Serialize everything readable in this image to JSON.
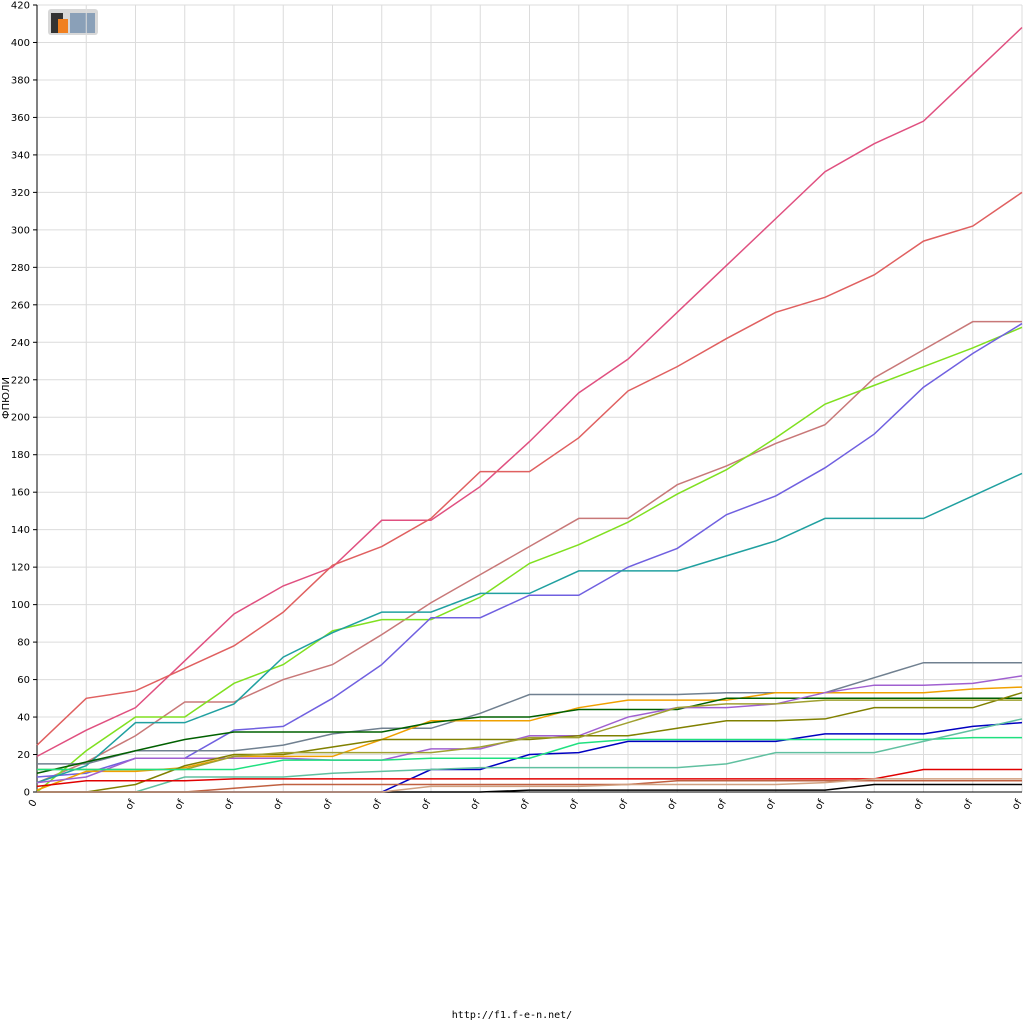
{
  "chart_data": {
    "type": "line",
    "y_label": "ФПЮЛИ",
    "footer": "http://f1.f-e-n.net/",
    "categories": [
      "0",
      null,
      "of",
      "of",
      "of",
      "of",
      "of",
      "of",
      "of",
      "of",
      "of",
      "of",
      "of",
      "of",
      "of",
      "of",
      "of",
      "of",
      "of",
      "of",
      "of"
    ],
    "ylim": [
      0,
      420
    ],
    "yticks": [
      0,
      20,
      40,
      60,
      80,
      100,
      120,
      140,
      160,
      180,
      200,
      220,
      240,
      260,
      280,
      300,
      320,
      340,
      360,
      380,
      400,
      420
    ],
    "grid": true,
    "series": [
      {
        "color": "#e05080",
        "values": [
          19,
          33,
          45,
          70,
          95,
          110,
          120,
          145,
          145,
          163,
          187,
          213,
          231,
          256,
          281,
          306,
          331,
          346,
          358,
          383,
          408
        ]
      },
      {
        "color": "#e06060",
        "values": [
          25,
          50,
          54,
          66,
          78,
          96,
          121,
          131,
          146,
          171,
          171,
          189,
          214,
          227,
          242,
          256,
          264,
          276,
          294,
          302,
          320
        ]
      },
      {
        "color": "#c87878",
        "values": [
          5,
          16,
          30,
          48,
          48,
          60,
          68,
          84,
          101,
          116,
          131,
          146,
          146,
          164,
          174,
          186,
          196,
          221,
          236,
          251,
          251
        ]
      },
      {
        "color": "#80e020",
        "values": [
          0,
          22,
          40,
          40,
          58,
          68,
          86,
          92,
          92,
          104,
          122,
          132,
          144,
          159,
          172,
          189,
          207,
          217,
          227,
          237,
          248
        ]
      },
      {
        "color": "#7060e0",
        "values": [
          8,
          10,
          18,
          18,
          33,
          35,
          50,
          68,
          93,
          93,
          105,
          105,
          120,
          130,
          148,
          158,
          173,
          191,
          216,
          234,
          250
        ]
      },
      {
        "color": "#20a0a0",
        "values": [
          5,
          14,
          37,
          37,
          47,
          72,
          85,
          96,
          96,
          106,
          106,
          118,
          118,
          118,
          126,
          134,
          146,
          146,
          146,
          158,
          170
        ]
      },
      {
        "color": "#708090",
        "values": [
          15,
          15,
          22,
          22,
          22,
          25,
          31,
          34,
          34,
          42,
          52,
          52,
          52,
          52,
          53,
          53,
          53,
          61,
          69,
          69,
          69
        ]
      },
      {
        "color": "#f0a000",
        "values": [
          1,
          11,
          11,
          13,
          19,
          19,
          19,
          28,
          38,
          38,
          38,
          45,
          49,
          49,
          49,
          53,
          53,
          53,
          53,
          55,
          56
        ]
      },
      {
        "color": "#006000",
        "values": [
          10,
          16,
          22,
          28,
          32,
          32,
          32,
          32,
          37,
          40,
          40,
          44,
          44,
          44,
          50,
          50,
          50,
          50,
          50,
          50,
          50
        ]
      },
      {
        "color": "#a060d0",
        "values": [
          5,
          8,
          18,
          18,
          18,
          18,
          17,
          17,
          23,
          23,
          30,
          30,
          40,
          45,
          45,
          47,
          53,
          57,
          57,
          58,
          62
        ]
      },
      {
        "color": "#808000",
        "values": [
          0,
          0,
          4,
          14,
          20,
          20,
          24,
          28,
          28,
          28,
          28,
          30,
          30,
          34,
          38,
          38,
          39,
          45,
          45,
          45,
          53
        ]
      },
      {
        "color": "#a0a030",
        "values": [
          12,
          12,
          12,
          12,
          19,
          21,
          21,
          21,
          21,
          24,
          29,
          29,
          37,
          45,
          47,
          47,
          49,
          49,
          49,
          49,
          49
        ]
      },
      {
        "color": "#0000c0",
        "values": [
          0,
          0,
          0,
          0,
          0,
          0,
          0,
          0,
          12,
          12,
          20,
          21,
          27,
          27,
          27,
          27,
          31,
          31,
          31,
          35,
          37
        ]
      },
      {
        "color": "#20e080",
        "values": [
          12,
          12,
          12,
          12,
          12,
          17,
          17,
          17,
          18,
          18,
          18,
          26,
          28,
          28,
          28,
          28,
          28,
          28,
          28,
          29,
          29
        ]
      },
      {
        "color": "#60c0a0",
        "values": [
          0,
          0,
          0,
          8,
          8,
          8,
          10,
          11,
          12,
          13,
          13,
          13,
          13,
          13,
          15,
          21,
          21,
          21,
          27,
          33,
          39
        ]
      },
      {
        "color": "#e00000",
        "values": [
          3,
          6,
          6,
          6,
          7,
          7,
          7,
          7,
          7,
          7,
          7,
          7,
          7,
          7,
          7,
          7,
          7,
          7,
          12,
          12,
          12
        ]
      },
      {
        "color": "#c06040",
        "values": [
          0,
          0,
          0,
          0,
          2,
          4,
          4,
          4,
          4,
          4,
          4,
          4,
          4,
          6,
          6,
          6,
          6,
          6,
          6,
          6,
          6
        ]
      },
      {
        "color": "#000000",
        "values": [
          0,
          0,
          0,
          0,
          0,
          0,
          0,
          0,
          0,
          0,
          1,
          1,
          1,
          1,
          1,
          1,
          1,
          4,
          4,
          4,
          4
        ]
      },
      {
        "color": "#d0a080",
        "values": [
          0,
          0,
          0,
          0,
          0,
          0,
          0,
          0,
          3,
          3,
          3,
          3,
          4,
          4,
          4,
          4,
          5,
          7,
          7,
          7,
          7
        ]
      }
    ]
  }
}
